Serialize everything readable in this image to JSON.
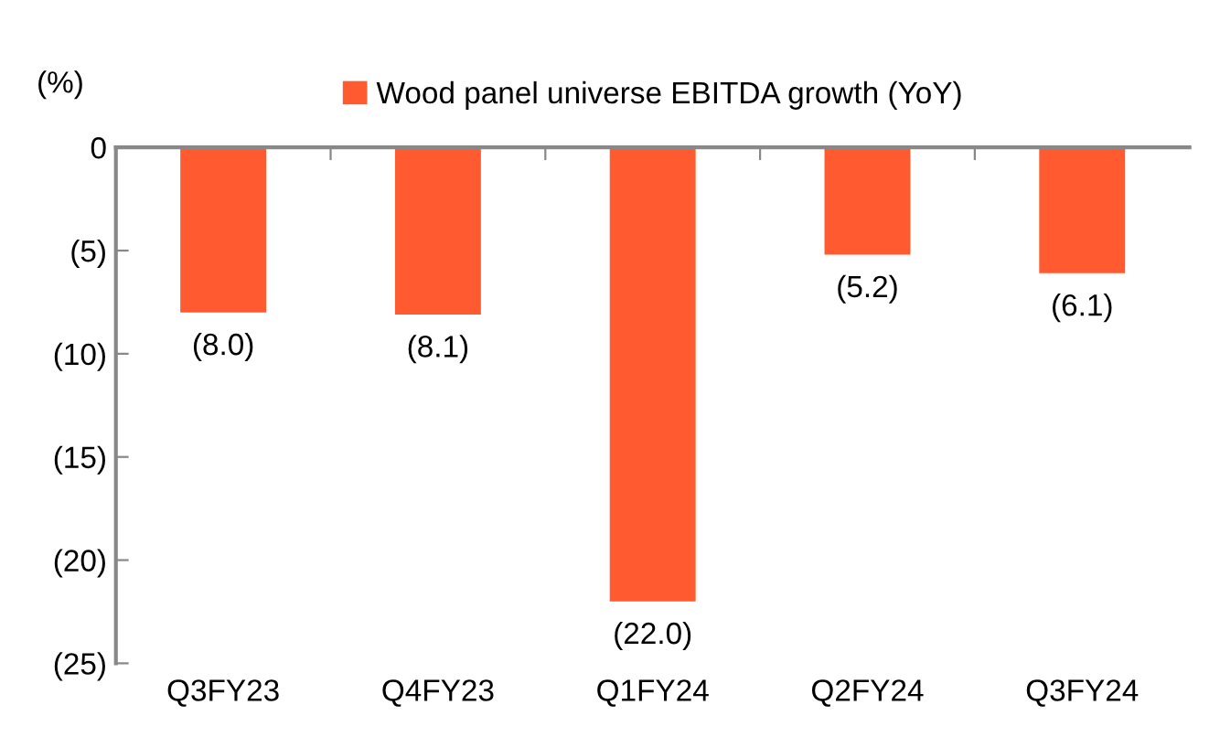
{
  "chart_data": {
    "type": "bar",
    "ylabel": "(%)",
    "categories": [
      "Q3FY23",
      "Q4FY23",
      "Q1FY24",
      "Q2FY24",
      "Q3FY24"
    ],
    "series": [
      {
        "name": "Wood panel universe EBITDA growth (YoY)",
        "color": "#ff5a30",
        "values": [
          -8.0,
          -8.1,
          -22.0,
          -5.2,
          -6.1
        ],
        "value_labels": [
          "(8.0)",
          "(8.1)",
          "(22.0)",
          "(5.2)",
          "(6.1)"
        ]
      }
    ],
    "ylim": [
      -25,
      0
    ],
    "yticks": [
      {
        "value": 0,
        "label": "0"
      },
      {
        "value": -5,
        "label": "(5)"
      },
      {
        "value": -10,
        "label": "(10)"
      },
      {
        "value": -15,
        "label": "(15)"
      },
      {
        "value": -20,
        "label": "(20)"
      },
      {
        "value": -25,
        "label": "(25)"
      }
    ],
    "grid": false,
    "legend": "top"
  }
}
